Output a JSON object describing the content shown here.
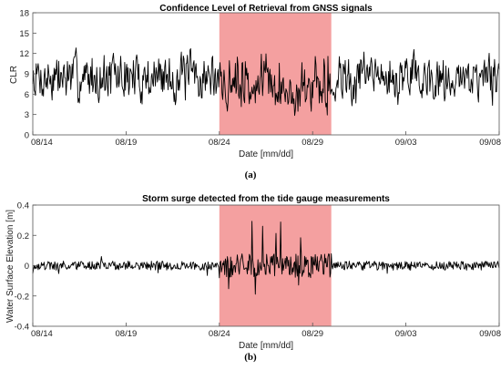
{
  "chart_data": [
    {
      "type": "line",
      "panel_label": "(a)",
      "title": "Confidence Level of Retrieval from GNSS signals",
      "xlabel": "Date [mm/dd]",
      "ylabel": "CLR",
      "x_ticks": [
        "08/14",
        "08/19",
        "08/24",
        "08/29",
        "09/03",
        "09/08"
      ],
      "y_ticks": [
        "0",
        "3",
        "6",
        "9",
        "12",
        "15",
        "18"
      ],
      "xlim": [
        "08/14",
        "09/08"
      ],
      "ylim": [
        0,
        18
      ],
      "grid": false,
      "shaded_region": {
        "x": [
          "08/24",
          "08/30"
        ],
        "color": "#f4a0a0"
      },
      "line_color": "#000000",
      "series_summary": {
        "outside_region": {
          "mean": 8.5,
          "min": 3,
          "max": 14
        },
        "inside_region": {
          "mean": 6.5,
          "min": 2.5,
          "max": 12
        }
      }
    },
    {
      "type": "line",
      "panel_label": "(b)",
      "title": "Storm surge detected from the tide gauge measurements",
      "xlabel": "Date [mm/dd]",
      "ylabel": "Water Surface Elevation [m]",
      "x_ticks": [
        "08/14",
        "08/19",
        "08/24",
        "08/29",
        "09/03",
        "09/08"
      ],
      "y_ticks": [
        "-0.4",
        "-0.2",
        "0",
        "0.2",
        "0.4"
      ],
      "xlim": [
        "08/14",
        "09/08"
      ],
      "ylim": [
        -0.4,
        0.4
      ],
      "grid": false,
      "shaded_region": {
        "x": [
          "08/24",
          "08/30"
        ],
        "color": "#f4a0a0"
      },
      "line_color": "#000000",
      "series_summary": {
        "outside_region": {
          "mean": 0,
          "min": -0.07,
          "max": 0.1
        },
        "inside_region": {
          "mean": 0,
          "min": -0.2,
          "max": 0.3
        }
      }
    }
  ]
}
